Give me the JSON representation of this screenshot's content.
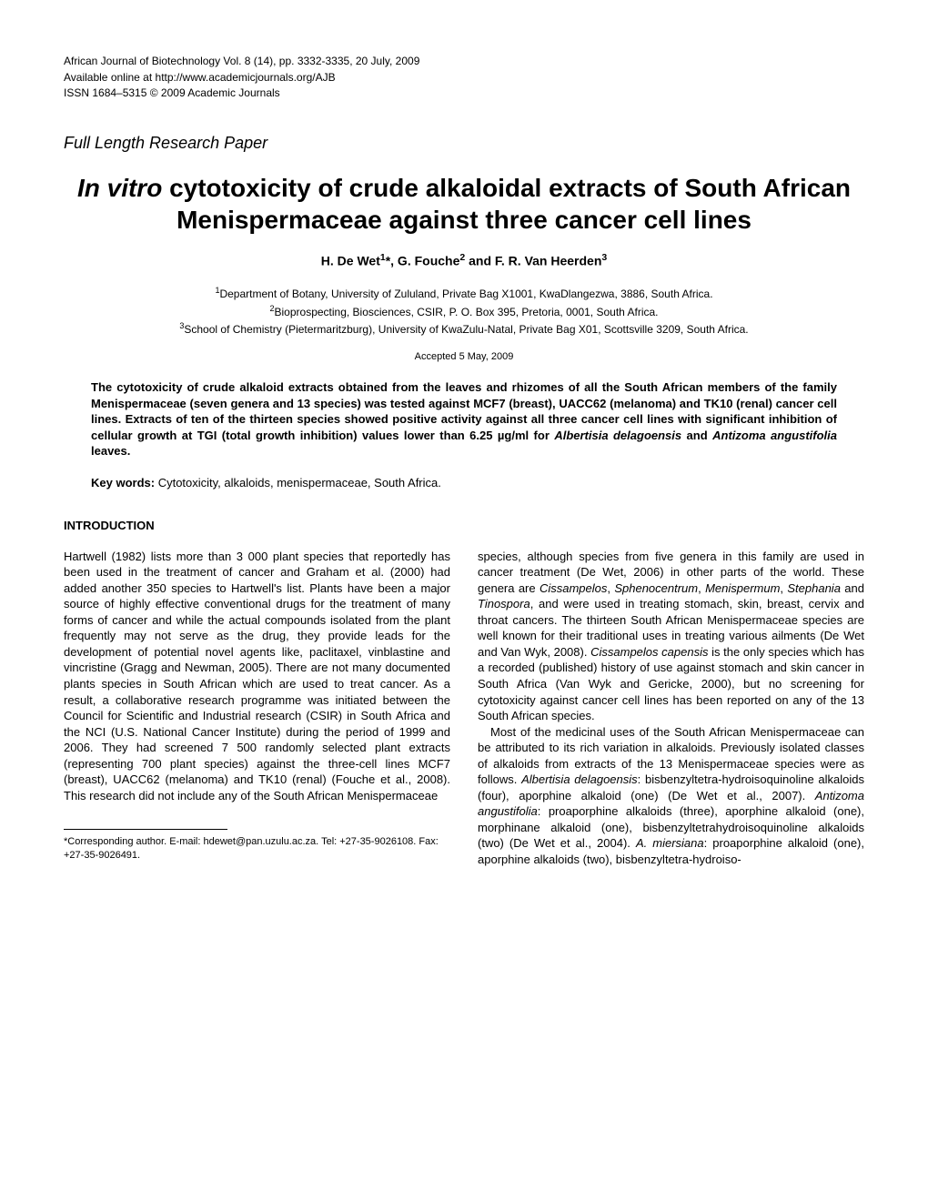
{
  "journal": {
    "line1": "African Journal of Biotechnology Vol. 8 (14), pp. 3332-3335, 20 July, 2009",
    "line2": "Available online at http://www.academicjournals.org/AJB",
    "line3": "ISSN 1684–5315 © 2009 Academic Journals"
  },
  "paper_type": "Full Length Research Paper",
  "title_prefix": "In vitro",
  "title_rest": " cytotoxicity of crude alkaloidal extracts of South African Menispermaceae against three cancer cell lines",
  "authors_html": "H. De Wet<sup>1</sup>*, G. Fouche<sup>2</sup> and F. R. Van Heerden<sup>3</sup>",
  "affiliations": {
    "a1": "Department of Botany, University of Zululand, Private Bag X1001, KwaDlangezwa, 3886, South Africa.",
    "a2": "Bioprospecting, Biosciences, CSIR, P. O. Box 395, Pretoria, 0001, South Africa.",
    "a3": "School of Chemistry (Pietermaritzburg), University of KwaZulu-Natal, Private Bag X01, Scottsville 3209, South Africa."
  },
  "accepted": "Accepted 5 May, 2009",
  "abstract_pre": "The cytotoxicity of crude alkaloid extracts obtained from the leaves and rhizomes of all the South African members of the family Menispermaceae (seven genera and 13 species) was tested against MCF7 (breast), UACC62 (melanoma) and TK10 (renal) cancer cell lines. Extracts of ten of the thirteen species showed positive activity against all three cancer cell lines with significant inhibition of cellular growth at TGI (total growth inhibition) values lower than 6.25 µg/ml for ",
  "abstract_sp1": "Albertisia delagoensis",
  "abstract_mid": " and ",
  "abstract_sp2": "Antizoma angustifolia",
  "abstract_post": " leaves.",
  "keywords_label": "Key words: ",
  "keywords_text": "Cytotoxicity, alkaloids, menispermaceae, South Africa.",
  "section_intro": "INTRODUCTION",
  "col_left": "Hartwell (1982) lists more than 3 000 plant species that reportedly has been used in the treatment of cancer and Graham et al. (2000) had added another 350 species to Hartwell's list. Plants have been a major source of highly effective conventional drugs for the treatment of many forms of cancer and while the actual compounds isolated from the plant frequently may not serve as the drug, they provide leads for the development of potential novel agents like, paclitaxel, vinblastine and vincristine (Gragg and Newman, 2005). There are not many documented plants species in South African which are used to treat cancer. As a result, a collaborative research programme was initiated between the Council for Scientific and Industrial research (CSIR) in South Africa and the NCI (U.S. National Cancer Institute) during the period of 1999 and 2006. They had screened 7 500 randomly selected plant extracts (representing 700 plant species) against the three-cell lines MCF7 (breast), UACC62 (melanoma) and TK10 (renal) (Fouche et al., 2008). This research did not include any of the South African Menispermaceae",
  "cr_p1_a": "species, although species from five genera in this family are used in cancer treatment (De Wet, 2006) in other parts of the world. These genera are ",
  "cr_g1": "Cissampelos",
  "cr_g2": "Sphenocentrum",
  "cr_g3": "Menispermum",
  "cr_g4": "Stephania",
  "cr_g5": "Tinospora",
  "cr_p1_b": ", and were used in treating stomach, skin, breast, cervix and throat cancers. The thirteen South African Menispermaceae species are well known for their traditional uses in treating various ailments (De Wet and Van Wyk, 2008). ",
  "cr_sp1": "Cissampelos capensis",
  "cr_p1_c": " is the only species which has a recorded (published) history of use against stomach and skin cancer in South Africa (Van Wyk and Gericke, 2000), but no screening for cytotoxicity against cancer cell lines has been reported on any of the 13 South African species.",
  "cr_p2_a": "Most of the medicinal uses of the South African Menispermaceae can be attributed to its rich variation in alkaloids. Previously isolated classes of alkaloids from extracts of the 13 Menispermaceae species were as follows. ",
  "cr_sp2": "Albertisia delagoensis",
  "cr_p2_b": ": bisbenzyltetra-hydroisoquinoline alkaloids (four), aporphine alkaloid (one) (De Wet et al., 2007). ",
  "cr_sp3": "Antizoma angustifolia",
  "cr_p2_c": ": proaporphine alkaloids (three), aporphine alkaloid (one), morphinane alkaloid (one), bisbenzyltetrahydroisoquinoline alkaloids (two) (De Wet et al., 2004). ",
  "cr_sp4": "A. miersiana",
  "cr_p2_d": ": proaporphine alkaloid (one), aporphine alkaloids (two), bisbenzyltetra-hydroiso-",
  "footnote": "*Corresponding author. E-mail: hdewet@pan.uzulu.ac.za. Tel: +27-35-9026108. Fax: +27-35-9026491.",
  "sep": ", ",
  "and": " and "
}
